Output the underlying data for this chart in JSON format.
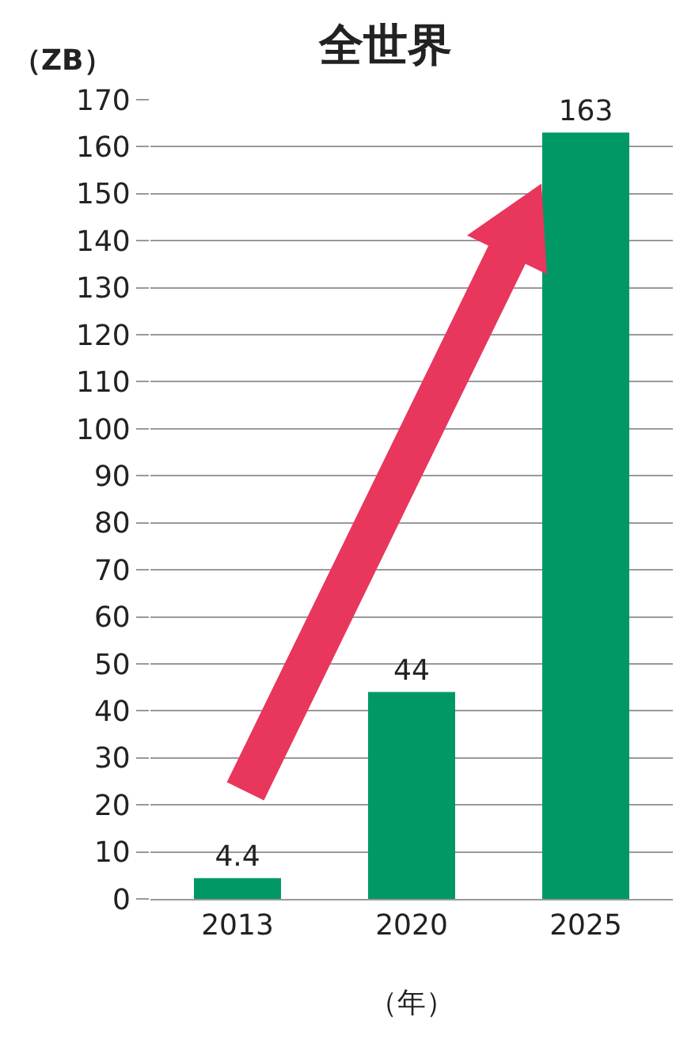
{
  "chart_data": {
    "type": "bar",
    "title": "全世界",
    "ylabel": "（ZB）",
    "xlabel": "（年）",
    "categories": [
      "2013",
      "2020",
      "2025"
    ],
    "values": [
      4.4,
      44,
      163
    ],
    "colors": [
      "#009966",
      "#009966",
      "#009966"
    ],
    "ylim": [
      0,
      170
    ],
    "yticks": [
      0,
      10,
      20,
      30,
      40,
      50,
      60,
      70,
      80,
      90,
      100,
      110,
      120,
      130,
      140,
      150,
      160,
      170
    ],
    "grid": "y",
    "data_labels": true,
    "legend": false
  }
}
